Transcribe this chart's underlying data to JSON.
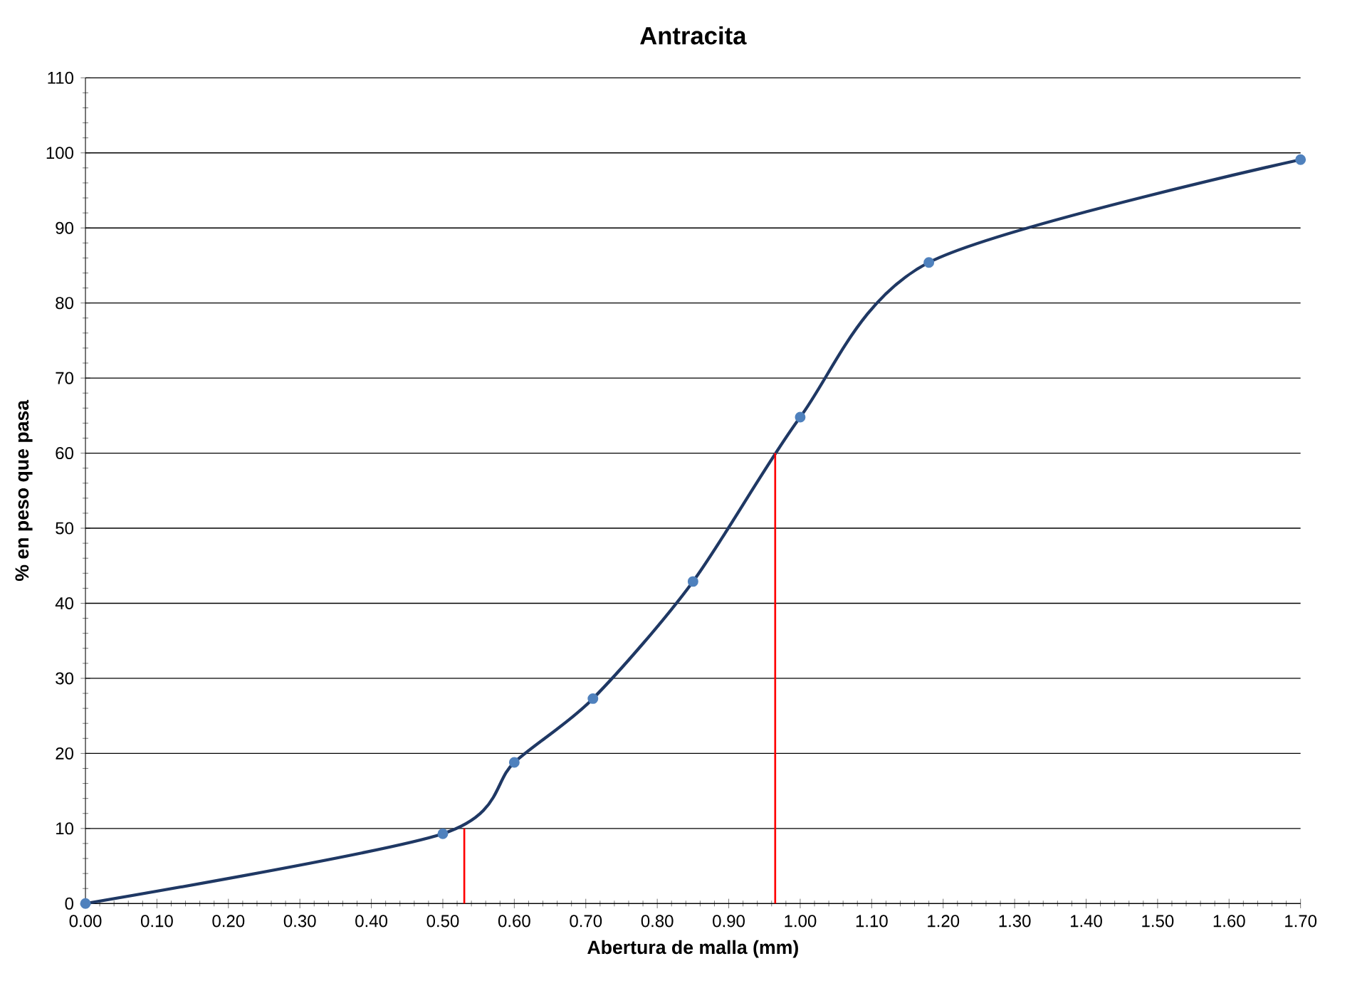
{
  "chart_data": {
    "type": "line",
    "title": "Antracita",
    "xlabel": "Abertura de malla (mm)",
    "ylabel": "% en peso que pasa",
    "x": [
      0,
      0.5,
      0.6,
      0.71,
      0.85,
      1.0,
      1.18,
      1.7
    ],
    "series": [
      {
        "color": "#1f3864",
        "values": [
          0,
          9.3,
          18.8,
          27.3,
          42.9,
          64.8,
          85.4,
          99.1
        ],
        "marker": "circle"
      },
      {
        "type": "bar",
        "color": "#ff0000",
        "x": [
          0.53,
          0.965
        ],
        "values": [
          10,
          60
        ],
        "marker": "none"
      }
    ],
    "xlim": [
      0,
      1.7
    ],
    "ylim": [
      0,
      110
    ],
    "xticks": [
      {
        "value": 0,
        "label": "0.00"
      },
      {
        "value": 0.1,
        "label": "0.10"
      },
      {
        "value": 0.2,
        "label": "0.20"
      },
      {
        "value": 0.3,
        "label": "0.30"
      },
      {
        "value": 0.4,
        "label": "0.40"
      },
      {
        "value": 0.5,
        "label": "0.50"
      },
      {
        "value": 0.6,
        "label": "0.60"
      },
      {
        "value": 0.7,
        "label": "0.70"
      },
      {
        "value": 0.8,
        "label": "0.80"
      },
      {
        "value": 0.9,
        "label": "0.90"
      },
      {
        "value": 1.0,
        "label": "1.00"
      },
      {
        "value": 1.1,
        "label": "1.10"
      },
      {
        "value": 1.2,
        "label": "1.20"
      },
      {
        "value": 1.3,
        "label": "1.30"
      },
      {
        "value": 1.4,
        "label": "1.40"
      },
      {
        "value": 1.5,
        "label": "1.50"
      },
      {
        "value": 1.6,
        "label": "1.60"
      },
      {
        "value": 1.7,
        "label": "1.70"
      }
    ],
    "yticks": [
      0,
      10,
      20,
      30,
      40,
      50,
      60,
      70,
      80,
      90,
      100,
      110
    ],
    "grid": "y"
  }
}
